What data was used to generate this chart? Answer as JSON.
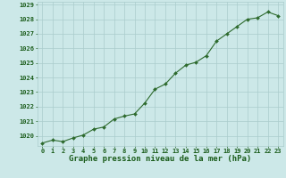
{
  "x": [
    0,
    1,
    2,
    3,
    4,
    5,
    6,
    7,
    8,
    9,
    10,
    11,
    12,
    13,
    14,
    15,
    16,
    17,
    18,
    19,
    20,
    21,
    22,
    23
  ],
  "y": [
    1019.5,
    1019.7,
    1019.6,
    1019.85,
    1020.05,
    1020.45,
    1020.6,
    1021.15,
    1021.35,
    1021.5,
    1022.25,
    1023.2,
    1023.55,
    1024.3,
    1024.85,
    1025.05,
    1025.5,
    1026.5,
    1027.0,
    1027.5,
    1028.0,
    1028.1,
    1028.5,
    1028.25
  ],
  "line_color": "#2d6a2d",
  "marker_color": "#2d6a2d",
  "bg_color": "#cce8e8",
  "grid_color": "#aacccc",
  "axis_label_color": "#1a5c1a",
  "xlabel": "Graphe pression niveau de la mer (hPa)",
  "ylim_min": 1019.3,
  "ylim_max": 1029.2,
  "yticks": [
    1020,
    1021,
    1022,
    1023,
    1024,
    1025,
    1026,
    1027,
    1028,
    1029
  ],
  "xticks": [
    0,
    1,
    2,
    3,
    4,
    5,
    6,
    7,
    8,
    9,
    10,
    11,
    12,
    13,
    14,
    15,
    16,
    17,
    18,
    19,
    20,
    21,
    22,
    23
  ],
  "tick_label_size": 5.0,
  "xlabel_fontsize": 6.5,
  "xlabel_fontweight": "bold",
  "linewidth": 0.8,
  "markersize": 2.0
}
